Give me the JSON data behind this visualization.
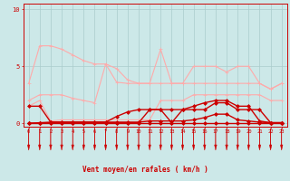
{
  "x": [
    0,
    1,
    2,
    3,
    4,
    5,
    6,
    7,
    8,
    9,
    10,
    11,
    12,
    13,
    14,
    15,
    16,
    17,
    18,
    19,
    20,
    21,
    22,
    23
  ],
  "series": [
    {
      "name": "line_pink_top1",
      "color": "#ffaaaa",
      "lw": 0.8,
      "marker": "+",
      "ms": 3,
      "y": [
        3.5,
        6.8,
        6.8,
        6.5,
        6.0,
        5.5,
        5.2,
        5.2,
        4.8,
        3.8,
        3.5,
        3.5,
        3.5,
        3.5,
        3.5,
        5.0,
        5.0,
        5.0,
        4.5,
        5.0,
        5.0,
        3.5,
        3.0,
        3.5
      ]
    },
    {
      "name": "line_pink_top2",
      "color": "#ffaaaa",
      "lw": 0.8,
      "marker": "+",
      "ms": 3,
      "y": [
        2.0,
        2.5,
        2.5,
        2.5,
        2.2,
        2.0,
        1.8,
        5.2,
        3.6,
        3.5,
        3.5,
        3.5,
        6.5,
        3.5,
        3.5,
        3.5,
        3.5,
        3.5,
        3.5,
        3.5,
        3.5,
        3.5,
        3.0,
        3.5
      ]
    },
    {
      "name": "line_pink_mid",
      "color": "#ffaaaa",
      "lw": 0.8,
      "marker": "+",
      "ms": 3,
      "y": [
        1.5,
        2.0,
        0.2,
        0.3,
        0.3,
        0.3,
        0.3,
        0.3,
        0.3,
        0.3,
        0.3,
        0.3,
        2.0,
        2.0,
        2.0,
        2.5,
        2.5,
        2.5,
        2.5,
        2.5,
        2.5,
        2.5,
        2.0,
        2.0
      ]
    },
    {
      "name": "line_red1",
      "color": "#cc0000",
      "lw": 1.0,
      "marker": "D",
      "ms": 2,
      "y": [
        0.0,
        0.0,
        0.05,
        0.05,
        0.05,
        0.05,
        0.05,
        0.05,
        0.05,
        0.05,
        0.05,
        1.2,
        1.2,
        0.05,
        1.2,
        1.2,
        1.2,
        1.8,
        1.8,
        1.2,
        1.2,
        1.2,
        0.05,
        0.05
      ]
    },
    {
      "name": "line_red2",
      "color": "#cc0000",
      "lw": 1.0,
      "marker": "D",
      "ms": 2,
      "y": [
        1.5,
        1.5,
        0.1,
        0.1,
        0.1,
        0.1,
        0.1,
        0.1,
        0.6,
        1.0,
        1.2,
        1.2,
        1.2,
        1.2,
        1.2,
        1.5,
        1.8,
        2.0,
        2.0,
        1.5,
        1.5,
        0.2,
        0.05,
        0.05
      ]
    },
    {
      "name": "line_red3",
      "color": "#cc0000",
      "lw": 1.0,
      "marker": "D",
      "ms": 2,
      "y": [
        0.0,
        0.05,
        0.1,
        0.1,
        0.1,
        0.1,
        0.1,
        0.1,
        0.1,
        0.1,
        0.1,
        0.2,
        0.2,
        0.2,
        0.2,
        0.3,
        0.5,
        0.8,
        0.8,
        0.3,
        0.2,
        0.1,
        0.05,
        0.05
      ]
    },
    {
      "name": "line_red4",
      "color": "#cc0000",
      "lw": 1.0,
      "marker": "D",
      "ms": 2,
      "y": [
        0.05,
        0.05,
        0.05,
        0.05,
        0.05,
        0.05,
        0.05,
        0.05,
        0.05,
        0.05,
        0.05,
        0.05,
        0.05,
        0.05,
        0.05,
        0.05,
        0.05,
        0.05,
        0.05,
        0.05,
        0.05,
        0.05,
        0.05,
        0.05
      ]
    }
  ],
  "xlabel": "Vent moyen/en rafales ( km/h )",
  "xlim": [
    -0.5,
    23.5
  ],
  "ylim": [
    -0.3,
    10.5
  ],
  "yticks": [
    0,
    5,
    10
  ],
  "xticks": [
    0,
    1,
    2,
    3,
    4,
    5,
    6,
    7,
    8,
    9,
    10,
    11,
    12,
    13,
    14,
    15,
    16,
    17,
    18,
    19,
    20,
    21,
    22,
    23
  ],
  "bg_color": "#cce8e8",
  "grid_color": "#aacccc",
  "axis_color": "#cc0000",
  "tick_color": "#cc0000",
  "arrow_color": "#cc0000"
}
